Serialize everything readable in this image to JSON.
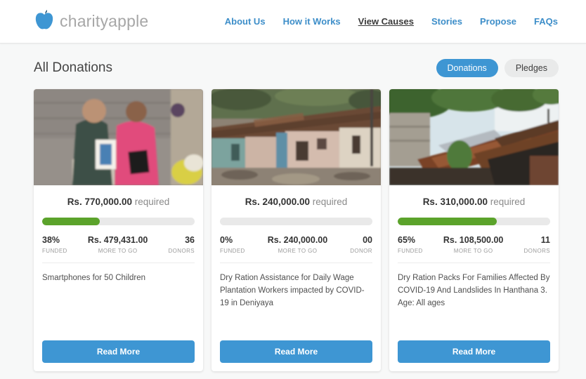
{
  "brand": {
    "name": "charityapple",
    "icon": "apple-icon",
    "accent": "#3e96d3"
  },
  "nav": {
    "items": [
      {
        "label": "About Us",
        "active": false
      },
      {
        "label": "How it Works",
        "active": false
      },
      {
        "label": "View Causes",
        "active": true
      },
      {
        "label": "Stories",
        "active": false
      },
      {
        "label": "Propose",
        "active": false
      },
      {
        "label": "FAQs",
        "active": false
      }
    ]
  },
  "page": {
    "title": "All Donations",
    "filters": [
      {
        "label": "Donations",
        "active": true
      },
      {
        "label": "Pledges",
        "active": false
      }
    ]
  },
  "colors": {
    "progress_green": "#5ba32b",
    "button_blue": "#3e96d3",
    "nav_blue": "#3d8ec9"
  },
  "cards": [
    {
      "photo": "two women with blurred faces holding smartphone box",
      "amount": "Rs. 770,000.00",
      "required_label": "required",
      "progress": 38,
      "funded_value": "38%",
      "funded_label": "FUNDED",
      "more_value": "Rs. 479,431.00",
      "more_label": "MORE TO GO",
      "donors_value": "36",
      "donors_label": "DONORS",
      "description": "Smartphones for 50 Children",
      "read_more": "Read More"
    },
    {
      "photo": "dilapidated plantation line houses",
      "amount": "Rs. 240,000.00",
      "required_label": "required",
      "progress": 0,
      "funded_value": "0%",
      "funded_label": "FUNDED",
      "more_value": "Rs. 240,000.00",
      "more_label": "MORE TO GO",
      "donors_value": "00",
      "donors_label": "DONOR",
      "description": "Dry Ration Assistance for Daily Wage Plantation Workers impacted by COVID-19 in Deniyaya",
      "read_more": "Read More"
    },
    {
      "photo": "damaged shack with rusty corrugated roof",
      "amount": "Rs. 310,000.00",
      "required_label": "required",
      "progress": 65,
      "funded_value": "65%",
      "funded_label": "FUNDED",
      "more_value": "Rs. 108,500.00",
      "more_label": "MORE TO GO",
      "donors_value": "11",
      "donors_label": "DONORS",
      "description": "Dry Ration Packs For Families Affected By COVID-19 And Landslides In Hanthana 3. Age: All ages",
      "read_more": "Read More"
    }
  ]
}
